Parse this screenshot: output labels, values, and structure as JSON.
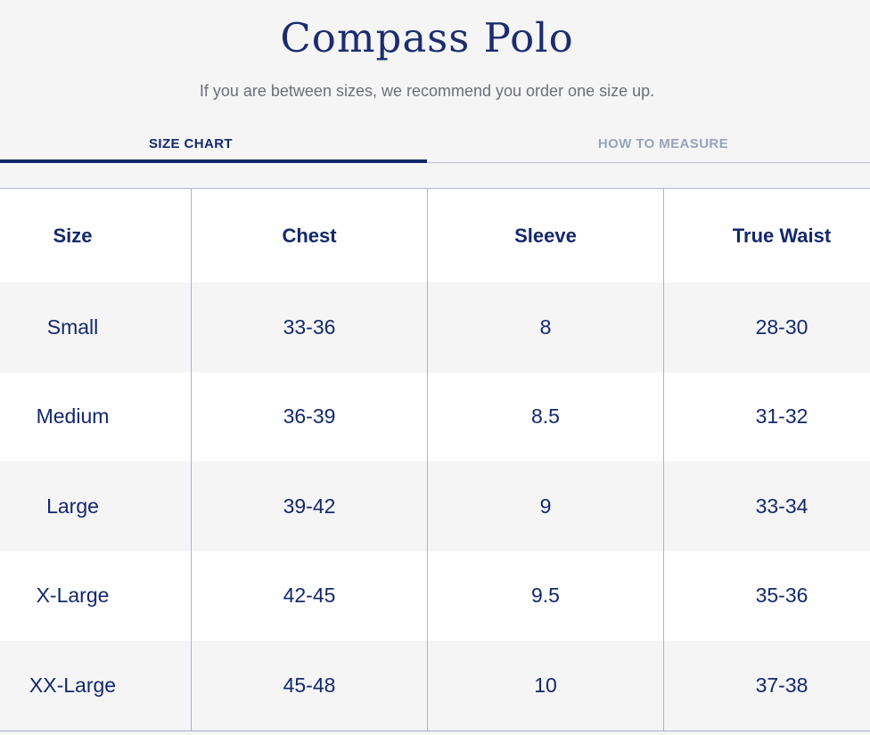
{
  "header": {
    "title": "Compass Polo",
    "subtitle": "If you are between sizes, we recommend you order one size up."
  },
  "tabs": [
    {
      "label": "SIZE CHART",
      "state": "active"
    },
    {
      "label": "HOW TO MEASURE",
      "state": "inactive"
    }
  ],
  "size_chart": {
    "columns": [
      "Size",
      "Chest",
      "Sleeve",
      "True Waist"
    ],
    "rows": [
      [
        "Small",
        "33-36",
        "8",
        "28-30"
      ],
      [
        "Medium",
        "36-39",
        "8.5",
        "31-32"
      ],
      [
        "Large",
        "39-42",
        "9",
        "33-34"
      ],
      [
        "X-Large",
        "42-45",
        "9.5",
        "35-36"
      ],
      [
        "XX-Large",
        "45-48",
        "10",
        "37-38"
      ]
    ]
  },
  "colors": {
    "accent_navy": "#14286b",
    "title_navy": "#1c2d6e",
    "inactive_tab_text": "#99a2bd",
    "subtitle_gray": "#6c6f75",
    "page_background": "#f5f5f6",
    "table_divider": "#a9b1d0"
  }
}
